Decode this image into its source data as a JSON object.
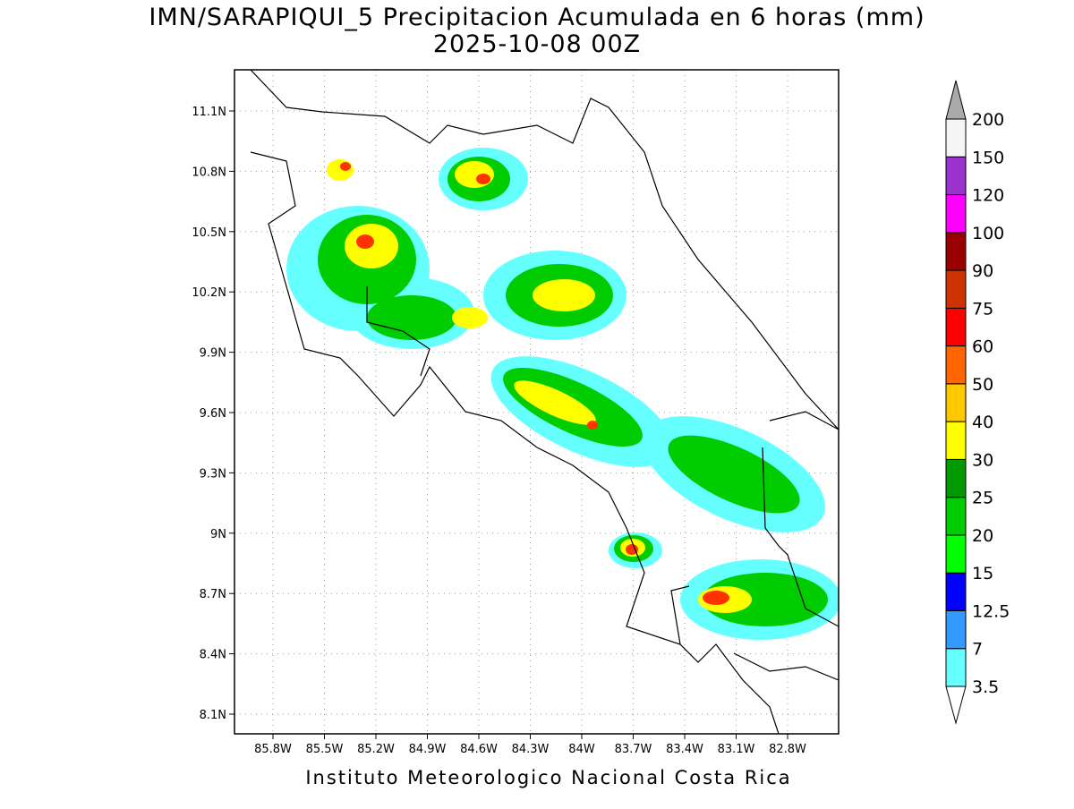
{
  "header": {
    "title": "IMN/SARAPIQUI_5 Precipitacion Acumulada en 6 horas (mm)",
    "subtitle": "2025-10-08 00Z"
  },
  "map": {
    "lat_labels": [
      "11.1N",
      "10.8N",
      "10.5N",
      "10.2N",
      "9.9N",
      "9.6N",
      "9.3N",
      "9N",
      "8.7N",
      "8.4N",
      "8.1N"
    ],
    "lon_labels": [
      "85.8W",
      "85.5W",
      "85.2W",
      "84.9W",
      "84.6W",
      "84.3W",
      "84W",
      "83.7W",
      "83.4W",
      "83.1W",
      "82.8W"
    ]
  },
  "colorbar": {
    "labels": [
      "3.5",
      "7",
      "12.5",
      "15",
      "20",
      "25",
      "30",
      "40",
      "50",
      "60",
      "75",
      "90",
      "100",
      "120",
      "150",
      "200"
    ],
    "colors": [
      "#66ffff",
      "#3399ff",
      "#0000ff",
      "#00ff00",
      "#00cc00",
      "#009900",
      "#ffff00",
      "#ffc800",
      "#ff6600",
      "#ff0000",
      "#cc3300",
      "#990000",
      "#ff00ff",
      "#9933cc",
      "#f5f5f5"
    ],
    "below_color": "#ffffff",
    "above_color": "#aaaaaa"
  },
  "footer": "Instituto Meteorologico Nacional Costa Rica"
}
